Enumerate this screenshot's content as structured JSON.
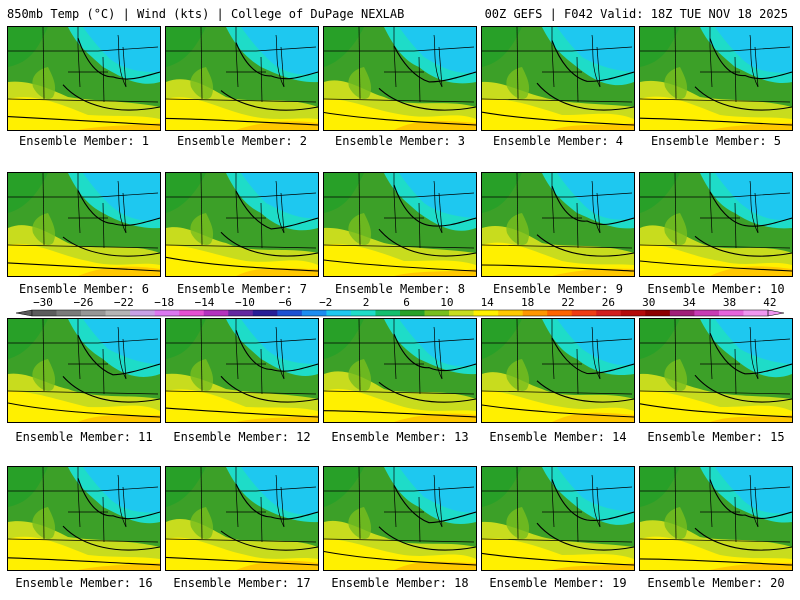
{
  "header": {
    "title": "850mb Temp (°C) | Wind (kts) | College of DuPage NEXLAB",
    "run_info": "00Z GEFS | F042 Valid: 18Z TUE NOV 18 2025"
  },
  "members": [
    {
      "label": "Ensemble Member: 1"
    },
    {
      "label": "Ensemble Member: 2"
    },
    {
      "label": "Ensemble Member: 3"
    },
    {
      "label": "Ensemble Member: 4"
    },
    {
      "label": "Ensemble Member: 5"
    },
    {
      "label": "Ensemble Member: 6"
    },
    {
      "label": "Ensemble Member: 7"
    },
    {
      "label": "Ensemble Member: 8"
    },
    {
      "label": "Ensemble Member: 9"
    },
    {
      "label": "Ensemble Member: 10"
    },
    {
      "label": "Ensemble Member: 11"
    },
    {
      "label": "Ensemble Member: 12"
    },
    {
      "label": "Ensemble Member: 13"
    },
    {
      "label": "Ensemble Member: 14"
    },
    {
      "label": "Ensemble Member: 15"
    },
    {
      "label": "Ensemble Member: 16"
    },
    {
      "label": "Ensemble Member: 17"
    },
    {
      "label": "Ensemble Member: 18"
    },
    {
      "label": "Ensemble Member: 19"
    },
    {
      "label": "Ensemble Member: 20"
    }
  ],
  "colorbar": {
    "ticks": [
      "-30",
      "-26",
      "-22",
      "-18",
      "-14",
      "-10",
      "-6",
      "-2",
      "2",
      "6",
      "10",
      "14",
      "18",
      "22",
      "26",
      "30",
      "34",
      "38",
      "42"
    ],
    "colors": [
      "#5c5c5c",
      "#7a7a7a",
      "#969696",
      "#b4b4b4",
      "#c8a0e6",
      "#dc78f0",
      "#e650d2",
      "#b432be",
      "#6428a0",
      "#281e96",
      "#1e50d2",
      "#1e8cf0",
      "#1ec8f0",
      "#1edcc8",
      "#14be6e",
      "#28a028",
      "#78be1e",
      "#c8dc1e",
      "#fff000",
      "#ffc800",
      "#ff9600",
      "#ff6400",
      "#f03c14",
      "#d21e1e",
      "#b40a0a",
      "#8c0000",
      "#a01e78",
      "#c83cb4",
      "#e664dc",
      "#f096f0"
    ]
  }
}
